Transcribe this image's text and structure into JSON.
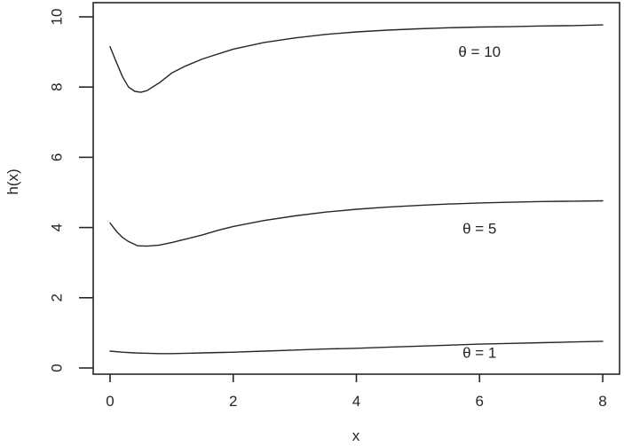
{
  "figure": {
    "background": "#ffffff",
    "ink_color": "#262626",
    "description": "R-style base-graphics line plot of hazard-type functions h(x) for three values of theta"
  },
  "chart_data": {
    "type": "line",
    "title": "",
    "xlabel": "x",
    "ylabel": "h(x)",
    "xlim": [
      0,
      8
    ],
    "ylim": [
      0,
      10
    ],
    "x_ticks": [
      0,
      2,
      4,
      6,
      8
    ],
    "y_ticks": [
      0,
      2,
      4,
      6,
      8,
      10
    ],
    "grid": false,
    "legend_position": "none-inline-labels",
    "series": [
      {
        "name": "curve-theta-10",
        "label": "θ = 10",
        "points": [
          [
            0,
            9.15
          ],
          [
            0.1,
            8.72
          ],
          [
            0.2,
            8.3
          ],
          [
            0.3,
            8.0
          ],
          [
            0.4,
            7.88
          ],
          [
            0.5,
            7.85
          ],
          [
            0.6,
            7.9
          ],
          [
            0.8,
            8.12
          ],
          [
            1.0,
            8.4
          ],
          [
            1.2,
            8.58
          ],
          [
            1.5,
            8.8
          ],
          [
            2.0,
            9.08
          ],
          [
            2.5,
            9.27
          ],
          [
            3.0,
            9.4
          ],
          [
            3.5,
            9.5
          ],
          [
            4.0,
            9.57
          ],
          [
            4.5,
            9.62
          ],
          [
            5.0,
            9.66
          ],
          [
            5.5,
            9.69
          ],
          [
            6.0,
            9.71
          ],
          [
            6.5,
            9.72
          ],
          [
            7.0,
            9.74
          ],
          [
            7.5,
            9.75
          ],
          [
            8.0,
            9.77
          ]
        ]
      },
      {
        "name": "curve-theta-5",
        "label": "θ = 5",
        "points": [
          [
            0,
            4.13
          ],
          [
            0.1,
            3.9
          ],
          [
            0.2,
            3.72
          ],
          [
            0.3,
            3.6
          ],
          [
            0.45,
            3.48
          ],
          [
            0.6,
            3.47
          ],
          [
            0.8,
            3.5
          ],
          [
            1.0,
            3.57
          ],
          [
            1.25,
            3.68
          ],
          [
            1.5,
            3.79
          ],
          [
            1.75,
            3.92
          ],
          [
            2.0,
            4.03
          ],
          [
            2.5,
            4.2
          ],
          [
            3.0,
            4.33
          ],
          [
            3.5,
            4.44
          ],
          [
            4.0,
            4.52
          ],
          [
            4.5,
            4.58
          ],
          [
            5.0,
            4.63
          ],
          [
            5.5,
            4.67
          ],
          [
            6.0,
            4.7
          ],
          [
            6.5,
            4.72
          ],
          [
            7.0,
            4.74
          ],
          [
            7.5,
            4.75
          ],
          [
            8.0,
            4.76
          ]
        ]
      },
      {
        "name": "curve-theta-1",
        "label": "θ = 1",
        "points": [
          [
            0,
            0.48
          ],
          [
            0.2,
            0.45
          ],
          [
            0.4,
            0.43
          ],
          [
            0.6,
            0.42
          ],
          [
            0.8,
            0.41
          ],
          [
            1.0,
            0.41
          ],
          [
            1.25,
            0.42
          ],
          [
            1.5,
            0.43
          ],
          [
            2.0,
            0.45
          ],
          [
            2.5,
            0.48
          ],
          [
            3.0,
            0.51
          ],
          [
            3.5,
            0.54
          ],
          [
            4.0,
            0.56
          ],
          [
            4.5,
            0.59
          ],
          [
            5.0,
            0.62
          ],
          [
            5.5,
            0.65
          ],
          [
            6.0,
            0.68
          ],
          [
            6.5,
            0.7
          ],
          [
            7.0,
            0.72
          ],
          [
            7.5,
            0.74
          ],
          [
            8.0,
            0.76
          ]
        ]
      }
    ],
    "annotations": [
      {
        "name": "annotation-theta-10",
        "text": "θ = 10",
        "x": 6.0,
        "y": 9.0
      },
      {
        "name": "annotation-theta-5",
        "text": "θ = 5",
        "x": 6.0,
        "y": 3.97
      },
      {
        "name": "annotation-theta-1",
        "text": "θ = 1",
        "x": 6.0,
        "y": 0.43
      }
    ]
  }
}
